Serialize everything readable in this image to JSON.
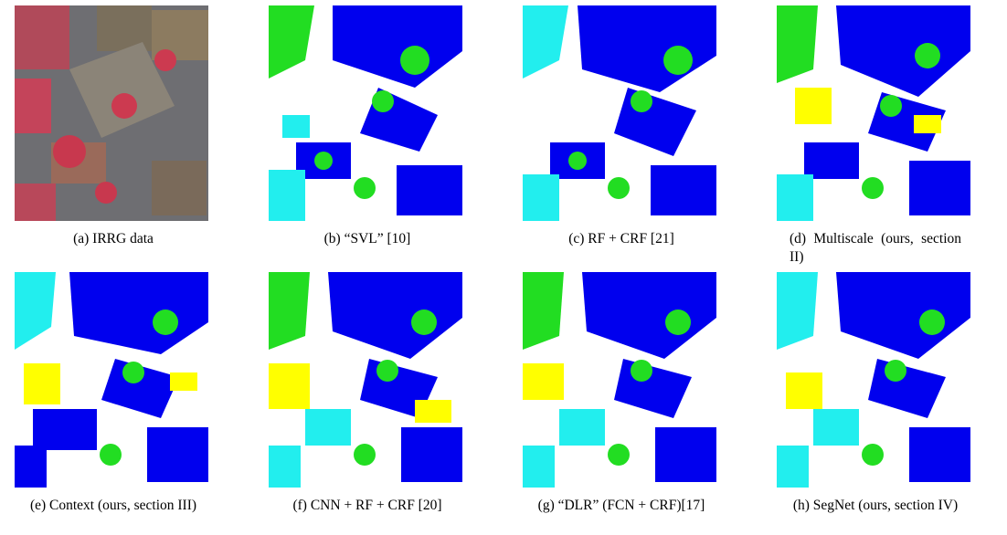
{
  "figure": {
    "panels": [
      {
        "id": "a",
        "caption": "(a) IRRG data",
        "kind": "photo"
      },
      {
        "id": "b",
        "caption": "(b) “SVL” [10]",
        "kind": "segmentation"
      },
      {
        "id": "c",
        "caption": "(c) RF + CRF [21]",
        "kind": "segmentation"
      },
      {
        "id": "d",
        "caption": "(d) Multiscale (ours, section II)",
        "kind": "segmentation"
      },
      {
        "id": "e",
        "caption": "(e) Context (ours, section III)",
        "kind": "segmentation"
      },
      {
        "id": "f",
        "caption": "(f) CNN + RF + CRF [20]",
        "kind": "segmentation"
      },
      {
        "id": "g",
        "caption": "(g) “DLR” (FCN + CRF)[17]",
        "kind": "segmentation"
      },
      {
        "id": "h",
        "caption": "(h) SegNet (ours, section IV)",
        "kind": "segmentation"
      }
    ]
  },
  "colors": {
    "building": "#0000ee",
    "road": "#ffffff",
    "tree": "#22dd22",
    "low_vegetation": "#22eeee",
    "car": "#ffff00",
    "clutter": "#ee0000",
    "photo_roof": "#8a7a62",
    "photo_red": "#c8384e",
    "photo_asphalt": "#6b6b70"
  }
}
